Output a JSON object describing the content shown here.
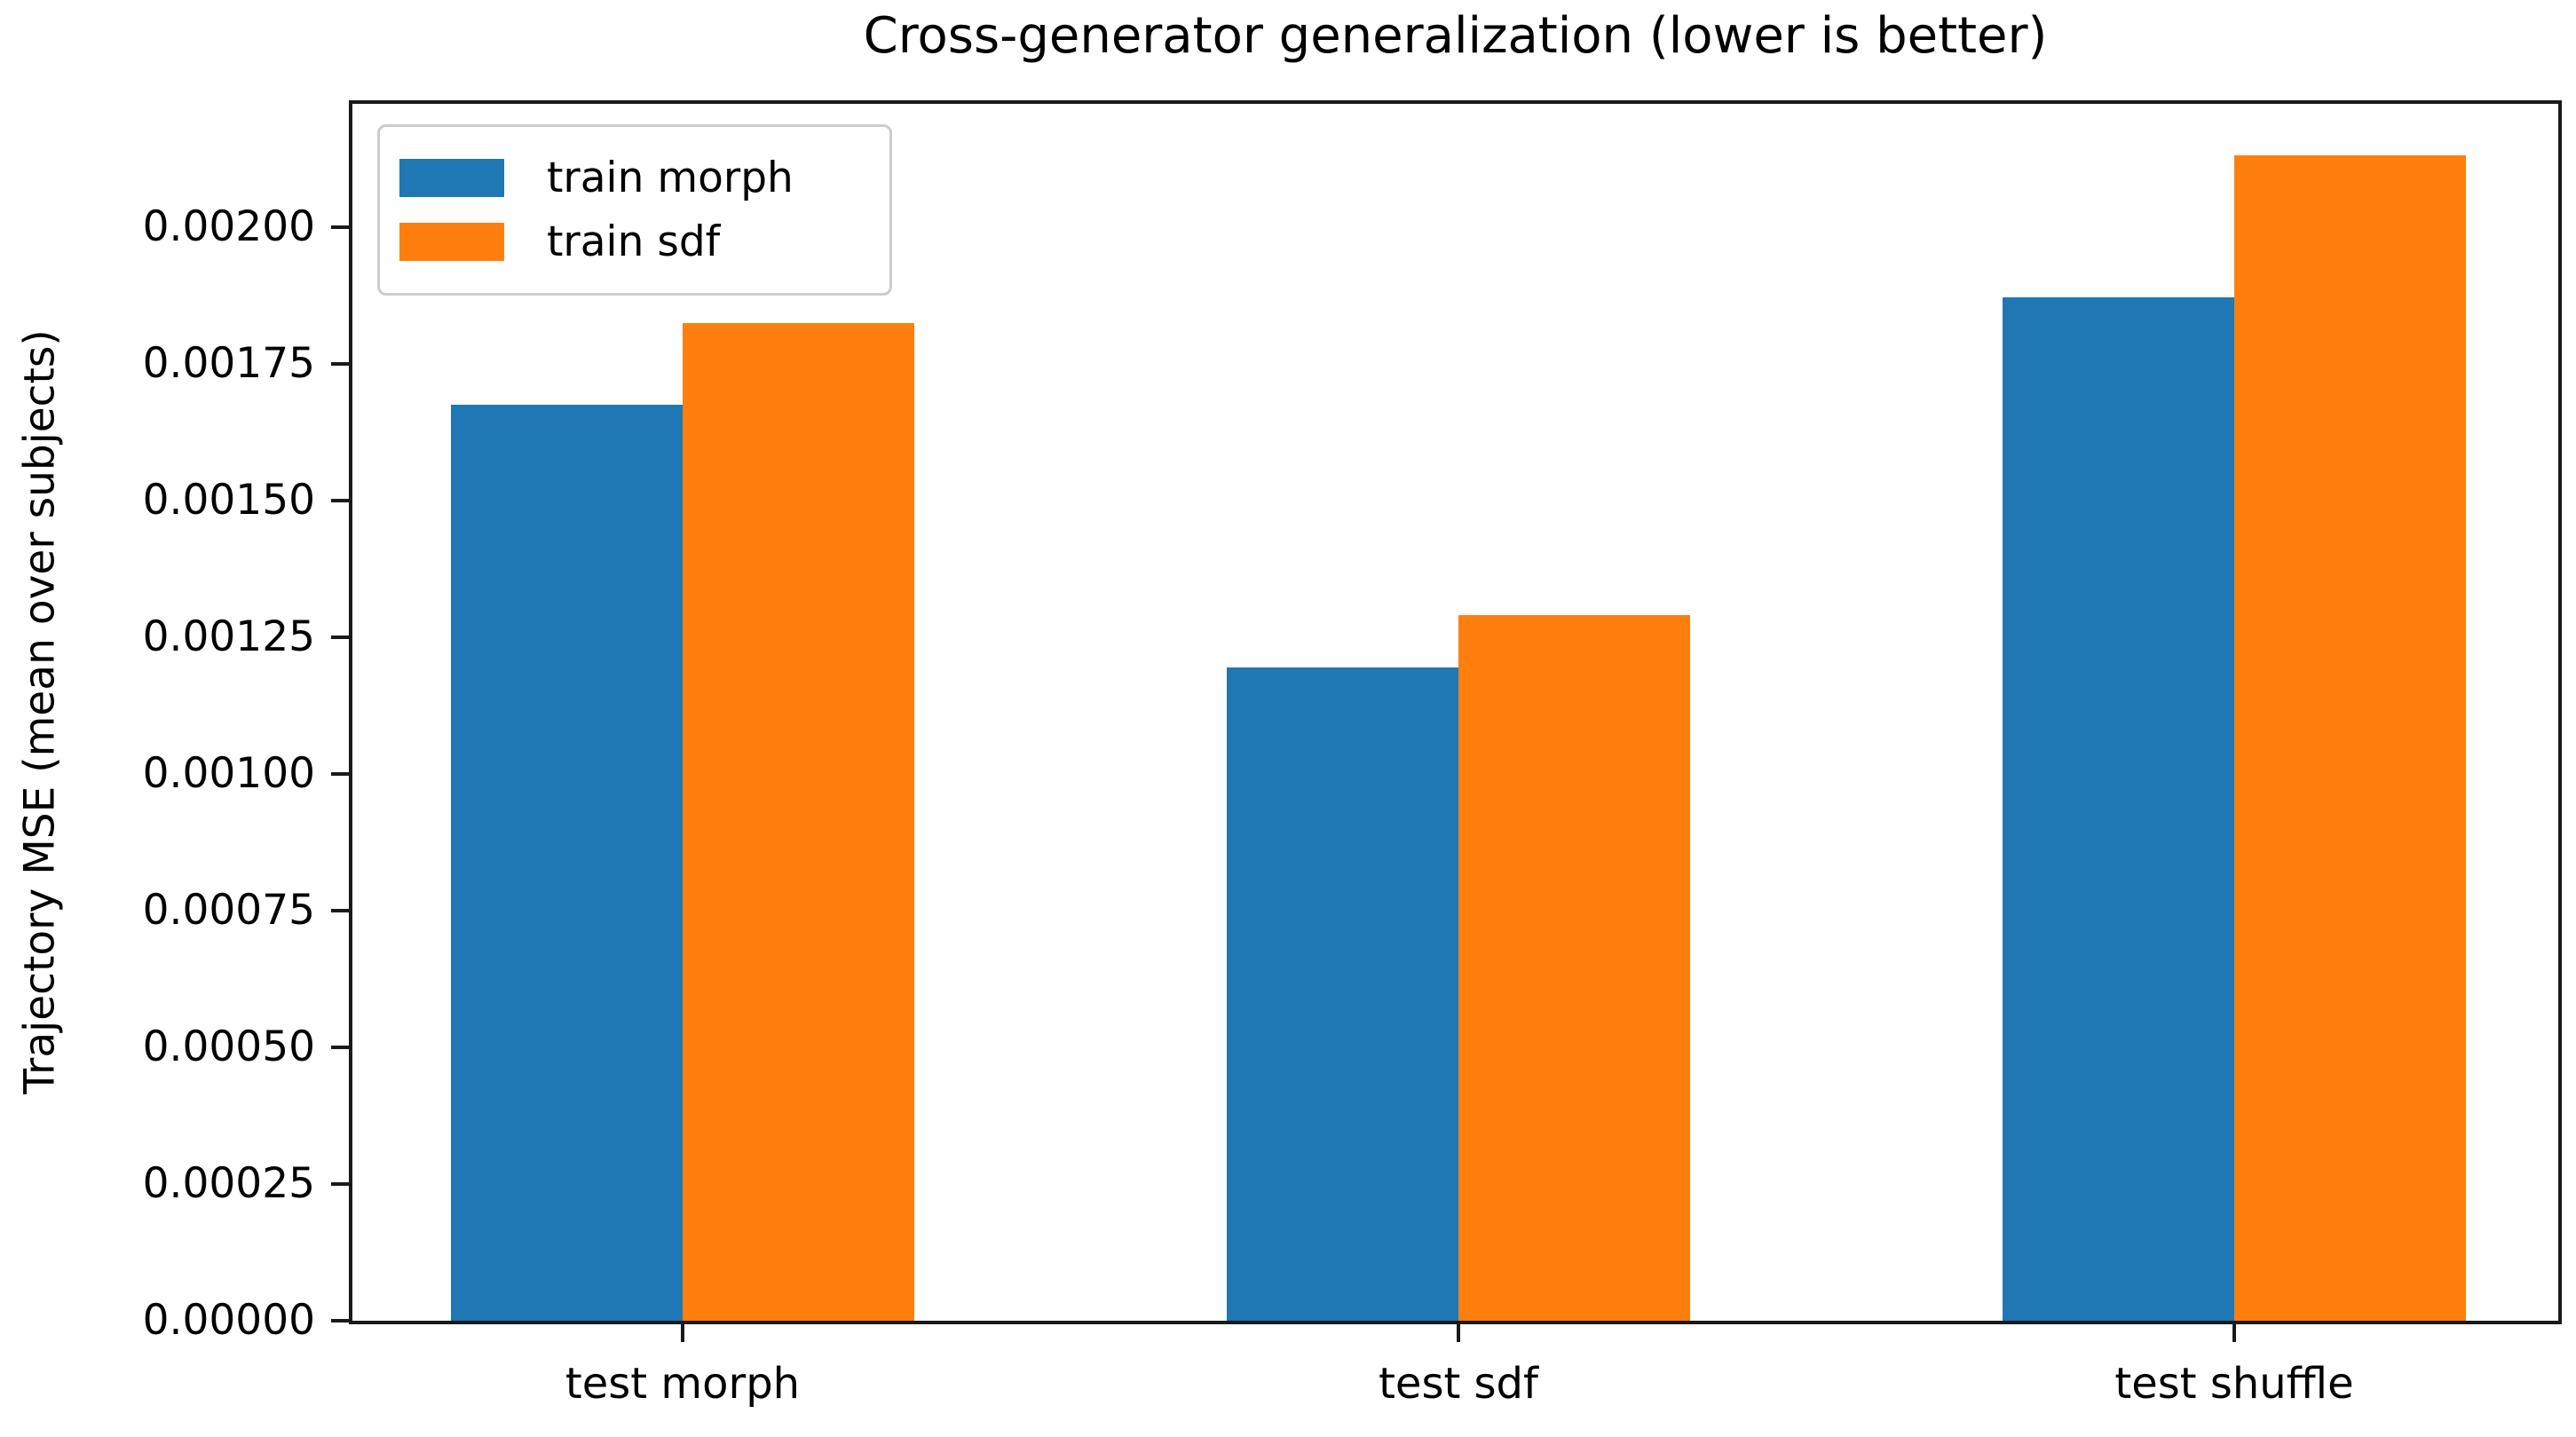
{
  "chart_data": {
    "type": "bar",
    "title": "Cross-generator generalization (lower is better)",
    "xlabel": "",
    "ylabel": "Trajectory MSE (mean over subjects)",
    "categories": [
      "test morph",
      "test sdf",
      "test shuffle"
    ],
    "series": [
      {
        "name": "train morph",
        "color": "#1f77b4",
        "values": [
          0.001676,
          0.001195,
          0.001871
        ]
      },
      {
        "name": "train sdf",
        "color": "#ff7f0e",
        "values": [
          0.001824,
          0.001291,
          0.002132
        ]
      }
    ],
    "ylim": [
      0,
      0.0022256
    ],
    "yticks": [
      0,
      0.00025,
      0.0005,
      0.00075,
      0.001,
      0.00125,
      0.0015,
      0.00175,
      0.002
    ],
    "ytick_labels": [
      "0.00000",
      "0.00025",
      "0.00050",
      "0.00075",
      "0.00100",
      "0.00125",
      "0.00150",
      "0.00175",
      "0.00200"
    ],
    "legend_position": "upper left",
    "grid": false,
    "bar_width_fraction": 0.3,
    "background_color": "#ffffff",
    "spine_color": "#1a1a1a"
  }
}
